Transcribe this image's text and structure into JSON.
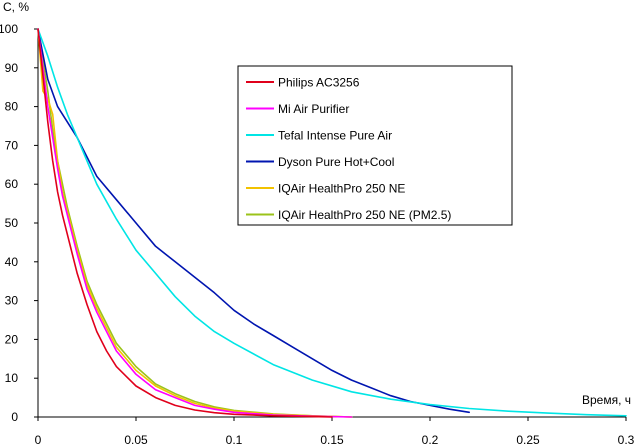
{
  "chart_data": {
    "type": "line",
    "title": "",
    "xlabel": "Время, ч",
    "ylabel": "С, %",
    "xlim": [
      0,
      0.3
    ],
    "ylim": [
      0,
      100
    ],
    "x_ticks": [
      "0",
      "0.05",
      "0.1",
      "0.15",
      "0.2",
      "0.25",
      "0.3"
    ],
    "y_ticks": [
      "0",
      "10",
      "20",
      "30",
      "40",
      "50",
      "60",
      "70",
      "80",
      "90",
      "100"
    ],
    "grid": false,
    "legend_position": "top-center",
    "series": [
      {
        "name": "Philips AC3256",
        "color": "#e0001b",
        "x": [
          0,
          0.0025,
          0.005,
          0.0075,
          0.01,
          0.0125,
          0.015,
          0.02,
          0.025,
          0.03,
          0.035,
          0.04,
          0.05,
          0.06,
          0.07,
          0.08,
          0.09,
          0.1,
          0.12,
          0.14,
          0.15
        ],
        "y": [
          100,
          88,
          76,
          66,
          58,
          52,
          47,
          37,
          29,
          22,
          17,
          13,
          8,
          5,
          3,
          1.8,
          1.1,
          0.7,
          0.3,
          0.1,
          0
        ]
      },
      {
        "name": "Mi Air Purifier",
        "color": "#ff00ff",
        "x": [
          0,
          0.0025,
          0.005,
          0.0075,
          0.01,
          0.0125,
          0.015,
          0.02,
          0.025,
          0.03,
          0.035,
          0.04,
          0.05,
          0.06,
          0.07,
          0.08,
          0.09,
          0.1,
          0.12,
          0.14,
          0.16
        ],
        "y": [
          100,
          90,
          80,
          72,
          64,
          57,
          52,
          42,
          33,
          27,
          22,
          17,
          11,
          7,
          5,
          3,
          2,
          1.2,
          0.5,
          0.2,
          0
        ]
      },
      {
        "name": "Tefal Intense Pure Air",
        "color": "#00e5e5",
        "x": [
          0,
          0.005,
          0.01,
          0.015,
          0.02,
          0.025,
          0.03,
          0.04,
          0.05,
          0.06,
          0.07,
          0.08,
          0.09,
          0.1,
          0.12,
          0.14,
          0.16,
          0.18,
          0.2,
          0.22,
          0.24,
          0.26,
          0.28,
          0.3
        ],
        "y": [
          100,
          93,
          85,
          78,
          72,
          66,
          60,
          51,
          43,
          37,
          31,
          26,
          22,
          19,
          13.5,
          9.5,
          6.5,
          4.6,
          3.2,
          2.2,
          1.5,
          1,
          0.6,
          0.3
        ]
      },
      {
        "name": "Dyson Pure Hot+Cool",
        "color": "#0015b0",
        "x": [
          0,
          0.005,
          0.01,
          0.015,
          0.02,
          0.025,
          0.03,
          0.04,
          0.05,
          0.06,
          0.07,
          0.08,
          0.09,
          0.1,
          0.11,
          0.12,
          0.13,
          0.14,
          0.15,
          0.16,
          0.17,
          0.18,
          0.19,
          0.2,
          0.21,
          0.22
        ],
        "y": [
          100,
          87,
          80,
          76,
          72,
          67,
          62,
          56,
          50,
          44,
          40,
          36,
          32,
          27.5,
          24,
          21,
          18,
          15,
          12,
          9.5,
          7.5,
          5.5,
          4,
          3,
          2,
          1.2
        ]
      },
      {
        "name": "IQAir HealthPro 250 NE",
        "color": "#f2c200",
        "x": [
          0,
          0.0025,
          0.005,
          0.0075,
          0.01,
          0.0125,
          0.015,
          0.02,
          0.025,
          0.03,
          0.035,
          0.04,
          0.05,
          0.06,
          0.07,
          0.08,
          0.09,
          0.1,
          0.12,
          0.14,
          0.16
        ],
        "y": [
          100,
          84,
          82,
          78,
          66,
          58,
          53,
          43,
          34,
          28,
          23,
          18,
          12,
          8,
          5.5,
          3.5,
          2.3,
          1.5,
          0.7,
          0.3,
          0
        ]
      },
      {
        "name": "IQAir HealthPro 250 NE (PM2.5)",
        "color": "#9bc31a",
        "x": [
          0,
          0.0025,
          0.005,
          0.0075,
          0.01,
          0.0125,
          0.015,
          0.02,
          0.025,
          0.03,
          0.035,
          0.04,
          0.05,
          0.06,
          0.07,
          0.08,
          0.09,
          0.1,
          0.12,
          0.14,
          0.16
        ],
        "y": [
          100,
          92,
          84,
          74,
          66,
          60,
          54,
          44,
          35,
          29,
          24,
          19,
          13,
          8.5,
          6,
          4,
          2.6,
          1.7,
          0.8,
          0.3,
          0
        ]
      }
    ]
  }
}
